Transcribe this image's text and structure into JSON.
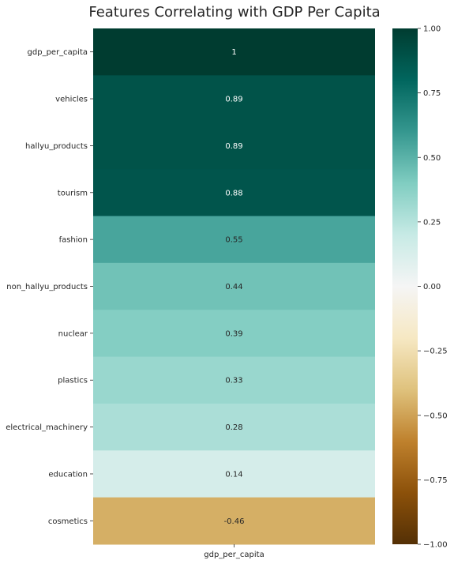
{
  "chart_data": {
    "type": "heatmap",
    "title": "Features Correlating with GDP Per Capita",
    "columns": [
      "gdp_per_capita"
    ],
    "rows": [
      "gdp_per_capita",
      "vehicles",
      "hallyu_products",
      "tourism",
      "fashion",
      "non_hallyu_products",
      "nuclear",
      "plastics",
      "electrical_machinery",
      "education",
      "cosmetics"
    ],
    "values": [
      1,
      0.89,
      0.89,
      0.88,
      0.55,
      0.44,
      0.39,
      0.33,
      0.28,
      0.14,
      -0.46
    ],
    "value_labels": [
      "1",
      "0.89",
      "0.89",
      "0.88",
      "0.55",
      "0.44",
      "0.39",
      "0.33",
      "0.28",
      "0.14",
      "-0.46"
    ],
    "colormap": "BrBG",
    "colorbar": {
      "range": [
        -1,
        1
      ],
      "ticks": [
        1,
        0.75,
        0.5,
        0.25,
        0,
        -0.25,
        -0.5,
        -0.75,
        -1
      ],
      "tick_labels": [
        "1.00",
        "0.75",
        "0.50",
        "0.25",
        "0.00",
        "−0.25",
        "−0.50",
        "−0.75",
        "−1.00"
      ]
    }
  }
}
